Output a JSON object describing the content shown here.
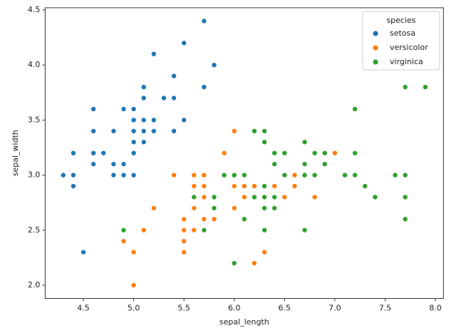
{
  "chart_data": {
    "type": "scatter",
    "x_label": "sepal_length",
    "y_label": "sepal_width",
    "legend_title": "species",
    "legend_position": "upper right",
    "xlim": [
      4.12,
      8.08
    ],
    "ylim": [
      1.88,
      4.52
    ],
    "xticks": [
      4.5,
      {
        "value": 5,
        "label": "5.0"
      },
      5.5,
      {
        "value": 6,
        "label": "6.0"
      },
      6.5,
      {
        "value": 7,
        "label": "7.0"
      },
      7.5,
      {
        "value": 8,
        "label": "8.0"
      }
    ],
    "yticks": [
      {
        "value": 2,
        "label": "2.0"
      },
      2.5,
      {
        "value": 3,
        "label": "3.0"
      },
      3.5,
      {
        "value": 4,
        "label": "4.0"
      },
      4.5
    ],
    "series": [
      {
        "name": "setosa",
        "color": "#1f77b4",
        "x": [
          5.1,
          4.9,
          4.7,
          4.6,
          5.0,
          5.4,
          4.6,
          5.0,
          4.4,
          4.9,
          5.4,
          4.8,
          4.8,
          4.3,
          5.8,
          5.7,
          5.4,
          5.1,
          5.7,
          5.1,
          5.4,
          5.1,
          4.6,
          5.1,
          4.8,
          5.0,
          5.0,
          5.2,
          5.2,
          4.7,
          4.8,
          5.4,
          5.2,
          5.5,
          4.9,
          5.0,
          5.5,
          4.9,
          4.4,
          5.1,
          5.0,
          4.5,
          4.4,
          5.0,
          5.1,
          4.8,
          5.1,
          4.6,
          5.3,
          5.0
        ],
        "y": [
          3.5,
          3.0,
          3.2,
          3.1,
          3.6,
          3.9,
          3.4,
          3.4,
          2.9,
          3.1,
          3.7,
          3.4,
          3.0,
          3.0,
          4.0,
          4.4,
          3.9,
          3.5,
          3.8,
          3.8,
          3.4,
          3.7,
          3.6,
          3.3,
          3.4,
          3.0,
          3.4,
          3.5,
          3.4,
          3.2,
          3.1,
          3.4,
          4.1,
          4.2,
          3.1,
          3.2,
          3.5,
          3.6,
          3.0,
          3.4,
          3.5,
          2.3,
          3.2,
          3.5,
          3.8,
          3.0,
          3.8,
          3.2,
          3.7,
          3.3
        ]
      },
      {
        "name": "versicolor",
        "color": "#ff7f0e",
        "x": [
          7.0,
          6.4,
          6.9,
          5.5,
          6.5,
          5.7,
          6.3,
          4.9,
          6.6,
          5.2,
          5.0,
          5.9,
          6.0,
          6.1,
          5.6,
          6.7,
          5.6,
          5.8,
          6.2,
          5.6,
          5.9,
          6.1,
          6.3,
          6.1,
          6.4,
          6.6,
          6.8,
          6.7,
          6.0,
          5.7,
          5.5,
          5.5,
          5.8,
          6.0,
          5.4,
          6.0,
          6.7,
          6.3,
          5.6,
          5.5,
          5.5,
          6.1,
          5.8,
          5.0,
          5.6,
          5.7,
          5.7,
          6.2,
          5.1,
          5.7
        ],
        "y": [
          3.2,
          3.2,
          3.1,
          2.3,
          2.8,
          2.8,
          3.3,
          2.4,
          2.9,
          2.7,
          2.0,
          3.0,
          2.2,
          2.9,
          2.9,
          3.1,
          3.0,
          2.7,
          2.2,
          2.5,
          3.2,
          2.8,
          2.5,
          2.8,
          2.9,
          3.0,
          2.8,
          3.0,
          2.9,
          2.6,
          2.4,
          2.4,
          2.7,
          2.7,
          3.0,
          3.4,
          3.1,
          2.3,
          3.0,
          2.5,
          2.6,
          3.0,
          2.6,
          2.3,
          2.7,
          3.0,
          2.9,
          2.9,
          2.5,
          2.8
        ]
      },
      {
        "name": "virginica",
        "color": "#2ca02c",
        "x": [
          6.3,
          5.8,
          7.1,
          6.3,
          6.5,
          7.6,
          4.9,
          7.3,
          6.7,
          7.2,
          6.5,
          6.4,
          6.8,
          5.7,
          5.8,
          6.4,
          6.5,
          7.7,
          7.7,
          6.0,
          6.9,
          5.6,
          7.7,
          6.3,
          6.7,
          7.2,
          6.2,
          6.1,
          6.4,
          7.2,
          7.4,
          7.9,
          6.4,
          6.3,
          6.1,
          7.7,
          6.3,
          6.4,
          6.0,
          6.9,
          6.7,
          6.9,
          5.8,
          6.8,
          6.7,
          6.7,
          6.3,
          6.5,
          6.2,
          5.9
        ],
        "y": [
          3.3,
          2.7,
          3.0,
          2.9,
          3.0,
          3.0,
          2.5,
          2.9,
          2.5,
          3.6,
          3.2,
          2.7,
          3.0,
          2.5,
          2.8,
          3.2,
          3.0,
          3.8,
          2.6,
          2.2,
          3.2,
          2.8,
          2.8,
          2.7,
          3.3,
          3.2,
          2.8,
          3.0,
          2.8,
          3.0,
          2.8,
          3.8,
          2.8,
          2.8,
          2.6,
          3.0,
          3.4,
          3.1,
          3.0,
          3.1,
          3.1,
          3.1,
          2.7,
          3.2,
          3.3,
          3.0,
          2.5,
          3.0,
          3.4,
          3.0
        ]
      }
    ]
  }
}
